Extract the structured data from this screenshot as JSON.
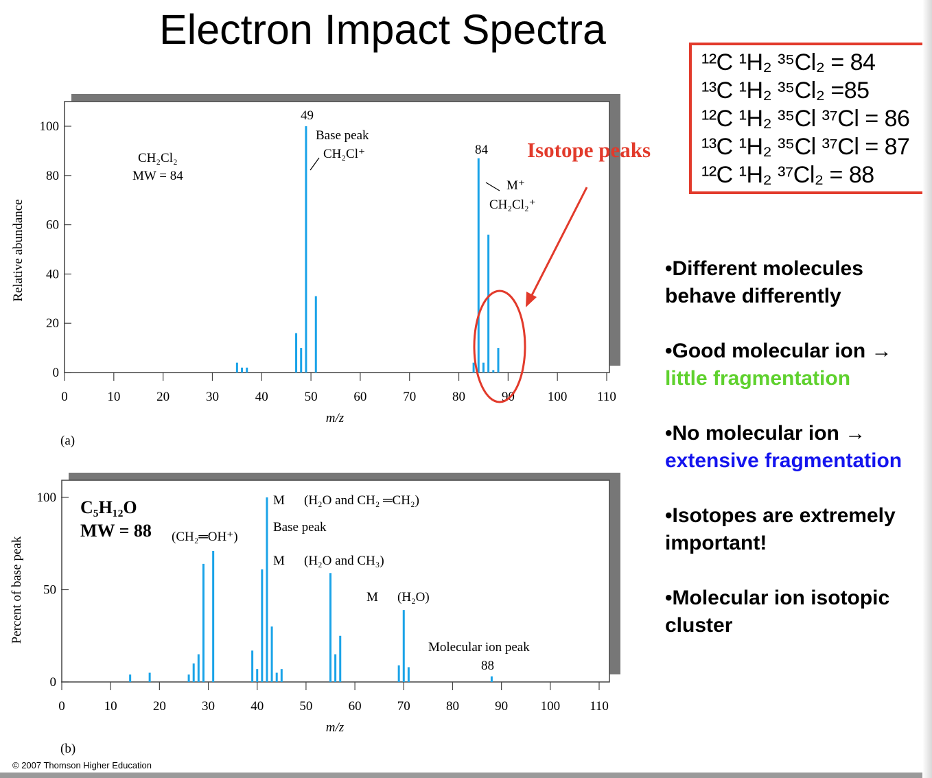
{
  "slide": {
    "title": "Electron Impact Spectra",
    "copyright": "© 2007 Thomson Higher Education"
  },
  "isotope_box": {
    "lines": [
      "¹²C ¹H₂ ³⁵Cl₂ = 84",
      "¹³C ¹H₂ ³⁵Cl₂ =85",
      "¹²C ¹H₂ ³⁵Cl ³⁷Cl = 86",
      "¹³C ¹H₂ ³⁵Cl ³⁷Cl = 87",
      "¹²C ¹H₂  ³⁷Cl₂  = 88"
    ],
    "border_color": "#e23a2b"
  },
  "isotope_callout": {
    "label": "Isotope peaks",
    "color": "#e23a2b"
  },
  "bullets": [
    {
      "text": "•Different molecules behave differently",
      "highlight": ""
    },
    {
      "text": "•Good molecular ion →",
      "highlight": "little fragmentation",
      "highlight_color": "#5fd12e"
    },
    {
      "text": "•No molecular ion →",
      "highlight": "extensive fragmentation",
      "highlight_color": "#1414ee"
    },
    {
      "text": "•Isotopes are extremely important!",
      "highlight": ""
    },
    {
      "text": "•Molecular ion isotopic cluster",
      "highlight": ""
    }
  ],
  "chart_data": [
    {
      "type": "bar",
      "panel_label": "(a)",
      "xlabel": "m/z",
      "ylabel": "Relative abundance",
      "xlim": [
        0,
        110
      ],
      "ylim": [
        0,
        100
      ],
      "xticks": [
        0,
        10,
        20,
        30,
        40,
        50,
        60,
        70,
        80,
        90,
        100,
        110
      ],
      "yticks": [
        0,
        20,
        40,
        60,
        80,
        100
      ],
      "bar_color": "#1aa3e8",
      "grid": false,
      "x": [
        35,
        36,
        37,
        47,
        48,
        49,
        51,
        83,
        84,
        85,
        86,
        87,
        88
      ],
      "values": [
        4,
        2,
        2,
        16,
        10,
        100,
        31,
        4,
        87,
        4,
        56,
        1,
        10
      ],
      "annotations": {
        "compound": "CH₂Cl₂",
        "mw": "MW = 84",
        "peak_49": "49",
        "base_peak": "Base peak",
        "base_ion": "CH₂Cl⁺",
        "peak_84": "84",
        "molecular_ion": "M⁺",
        "molecular_formula": "CH₂Cl₂⁺"
      }
    },
    {
      "type": "bar",
      "panel_label": "(b)",
      "xlabel": "m/z",
      "ylabel": "Percent of base peak",
      "xlim": [
        0,
        110
      ],
      "ylim": [
        0,
        100
      ],
      "xticks": [
        0,
        10,
        20,
        30,
        40,
        50,
        60,
        70,
        80,
        90,
        100,
        110
      ],
      "yticks": [
        0,
        50,
        100
      ],
      "bar_color": "#1aa3e8",
      "grid": false,
      "x": [
        14,
        18,
        26,
        27,
        28,
        29,
        31,
        39,
        40,
        41,
        42,
        43,
        44,
        45,
        55,
        56,
        57,
        69,
        70,
        71,
        88
      ],
      "values": [
        4,
        5,
        4,
        10,
        15,
        64,
        71,
        17,
        7,
        61,
        100,
        30,
        5,
        7,
        59,
        15,
        25,
        9,
        39,
        8,
        3
      ],
      "annotations": {
        "compound": "C₅H₁₂O",
        "mw": "MW = 88",
        "ion_31": "(CH₂═OH⁺)",
        "m1": "M",
        "loss1": "(H₂O and CH₂ ═CH₂)",
        "base_peak": "Base peak",
        "m2": "M",
        "loss2": "(H₂O and CH₃)",
        "m3": "M",
        "loss3": "(H₂O)",
        "molecular_ion_peak": "Molecular ion peak",
        "peak_88": "88"
      }
    }
  ]
}
